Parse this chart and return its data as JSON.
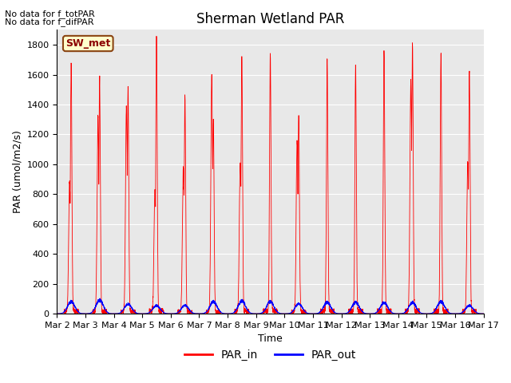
{
  "title": "Sherman Wetland PAR",
  "xlabel": "Time",
  "ylabel": "PAR (umol/m2/s)",
  "ylim": [
    0,
    1900
  ],
  "yticks": [
    0,
    200,
    400,
    600,
    800,
    1000,
    1200,
    1400,
    1600,
    1800
  ],
  "annotation1": "No data for f_totPAR",
  "annotation2": "No data for f_difPAR",
  "box_label": "SW_met",
  "legend_entries": [
    "PAR_in",
    "PAR_out"
  ],
  "line_colors": [
    "#ff0000",
    "#0000ff"
  ],
  "background_color": "#e8e8e8",
  "fig_background": "#ffffff",
  "xstart_day": 2,
  "xend_day": 17,
  "num_days": 15,
  "par_in_day_peaks": [
    1630,
    1530,
    1450,
    1800,
    1410,
    1250,
    1680,
    1720,
    1295,
    1680,
    1640,
    1730,
    1750,
    1720,
    1580
  ],
  "par_in_shoulder_peaks": [
    850,
    1290,
    1350,
    780,
    960,
    1570,
    970,
    0,
    1130,
    0,
    0,
    0,
    1510,
    0,
    980
  ],
  "par_out_peaks": [
    80,
    90,
    65,
    55,
    55,
    80,
    85,
    80,
    65,
    75,
    75,
    75,
    75,
    80,
    55
  ],
  "samples_per_day": 288,
  "title_fontsize": 12,
  "label_fontsize": 9,
  "tick_fontsize": 8
}
